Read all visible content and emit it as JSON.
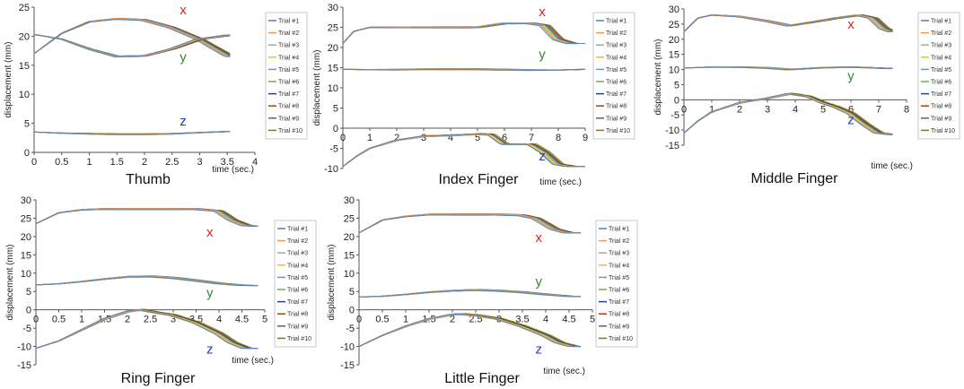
{
  "colors": {
    "trial_palette": [
      "#4f81bd",
      "#f79646",
      "#a5a5a5",
      "#ffc000",
      "#5b9bd5",
      "#70ad47",
      "#264478",
      "#9e480e",
      "#636363",
      "#997300"
    ],
    "x_marker": "#e02020",
    "y_marker": "#2e8b2e",
    "z_marker": "#2040c0",
    "axis": "#555555",
    "grid": "#e6e6e6"
  },
  "legend_entries": [
    "Trial #1",
    "Trial #2",
    "Trial #3",
    "Trial #4",
    "Trial #5",
    "Trial #6",
    "Trial #7",
    "Trial #8",
    "Trial #9",
    "Trial #10"
  ],
  "chart_data": [
    {
      "type": "line",
      "title": "Thumb",
      "xlabel": "time (sec.)",
      "ylabel": "displacement (mm)",
      "xlim": [
        0,
        4
      ],
      "ylim": [
        0,
        25
      ],
      "x_ticks": [
        0,
        0.5,
        1,
        1.5,
        2,
        2.5,
        3,
        3.5,
        4
      ],
      "y_ticks": [
        0,
        5,
        10,
        15,
        20,
        25
      ],
      "x_end": 3.55,
      "grid": false,
      "legend": "right",
      "axis_markers": [
        {
          "text": "x",
          "color": "#e02020",
          "at": [
            2.7,
            23.8
          ]
        },
        {
          "text": "y",
          "color": "#2e8b2e",
          "at": [
            2.7,
            15.7
          ]
        },
        {
          "text": "z",
          "color": "#2040c0",
          "at": [
            2.7,
            4.6
          ]
        }
      ],
      "components": [
        {
          "axis": "x",
          "x": [
            0,
            0.5,
            1,
            1.5,
            2,
            2.5,
            3,
            3.55
          ],
          "y": [
            17,
            20.5,
            22.5,
            23,
            22.8,
            21.5,
            19.5,
            16.5
          ]
        },
        {
          "axis": "y",
          "x": [
            0,
            0.5,
            1,
            1.5,
            2,
            2.5,
            3,
            3.55
          ],
          "y": [
            20.3,
            19.5,
            17.8,
            16.5,
            16.6,
            17.8,
            19.5,
            20.2
          ]
        },
        {
          "axis": "z",
          "x": [
            0,
            0.5,
            1,
            1.5,
            2,
            2.5,
            3,
            3.55
          ],
          "y": [
            3.5,
            3.3,
            3.2,
            3.1,
            3.1,
            3.2,
            3.4,
            3.6
          ]
        }
      ]
    },
    {
      "type": "line",
      "title": "Index Finger",
      "xlabel": "time (sec.)",
      "ylabel": "displacement (mm)",
      "xlim": [
        0,
        9
      ],
      "ylim": [
        -10,
        30
      ],
      "x_ticks": [
        0,
        1,
        2,
        3,
        4,
        5,
        6,
        7,
        8,
        9
      ],
      "y_ticks": [
        -10,
        -5,
        0,
        5,
        10,
        15,
        20,
        25,
        30
      ],
      "x_end": 9,
      "grid": false,
      "legend": "right",
      "axis_markers": [
        {
          "text": "x",
          "color": "#e02020",
          "at": [
            7.4,
            27.8
          ]
        },
        {
          "text": "y",
          "color": "#2e8b2e",
          "at": [
            7.4,
            17.2
          ]
        },
        {
          "text": "z",
          "color": "#2040c0",
          "at": [
            7.4,
            -8
          ]
        }
      ],
      "components": [
        {
          "axis": "x",
          "x": [
            0,
            0.4,
            1,
            2,
            3,
            4,
            5,
            6,
            7,
            7.5,
            8,
            8.5,
            9
          ],
          "y": [
            21,
            24,
            25,
            25,
            25,
            25,
            25,
            26,
            26,
            25.5,
            22,
            21,
            21
          ]
        },
        {
          "axis": "y",
          "x": [
            0,
            1,
            2,
            3,
            4,
            5,
            6,
            7,
            8,
            9
          ],
          "y": [
            14.6,
            14.5,
            14.5,
            14.6,
            14.6,
            14.6,
            14.5,
            14.4,
            14.4,
            14.6
          ]
        },
        {
          "axis": "z",
          "x": [
            0,
            0.5,
            1,
            2,
            3,
            4,
            5,
            5.5,
            6,
            7,
            7.5,
            8,
            8.5,
            9
          ],
          "y": [
            -9.5,
            -7,
            -5,
            -3,
            -2,
            -1.8,
            -1.5,
            -1.6,
            -4,
            -4,
            -6,
            -9,
            -9.5,
            -9.5
          ]
        }
      ]
    },
    {
      "type": "line",
      "title": "Middle Finger",
      "xlabel": "time (sec.)",
      "ylabel": "displacement (mm)",
      "xlim": [
        0,
        8
      ],
      "ylim": [
        -15,
        30
      ],
      "x_ticks": [
        0,
        1,
        2,
        3,
        4,
        5,
        6,
        7,
        8
      ],
      "y_ticks": [
        -15,
        -10,
        -5,
        0,
        5,
        10,
        15,
        20,
        25,
        30
      ],
      "x_end": 7.5,
      "grid": false,
      "legend": "right",
      "axis_markers": [
        {
          "text": "x",
          "color": "#e02020",
          "at": [
            6.0,
            23.5
          ]
        },
        {
          "text": "y",
          "color": "#2e8b2e",
          "at": [
            6.0,
            6.5
          ]
        },
        {
          "text": "z",
          "color": "#2040c0",
          "at": [
            6.0,
            -8
          ]
        }
      ],
      "components": [
        {
          "axis": "x",
          "x": [
            0,
            0.5,
            1,
            2,
            3,
            3.8,
            4.5,
            5.5,
            6.3,
            6.8,
            7.2,
            7.5
          ],
          "y": [
            22.5,
            27,
            28,
            27.5,
            26,
            24.5,
            25.5,
            27,
            28,
            27,
            23.5,
            22.5
          ]
        },
        {
          "axis": "y",
          "x": [
            0,
            1,
            2,
            3,
            3.8,
            5,
            6,
            7,
            7.5
          ],
          "y": [
            10.5,
            10.8,
            10.8,
            10.5,
            10,
            10.6,
            10.8,
            10.5,
            10.3
          ]
        },
        {
          "axis": "z",
          "x": [
            0,
            0.5,
            1,
            2,
            3,
            3.8,
            4.5,
            5,
            5.5,
            6,
            6.5,
            7,
            7.5
          ],
          "y": [
            -11,
            -7,
            -4,
            -1,
            0.5,
            2,
            1,
            -1,
            -2.5,
            -4.5,
            -8,
            -11,
            -11.5
          ]
        }
      ]
    },
    {
      "type": "line",
      "title": "Ring Finger",
      "xlabel": "time (sec.)",
      "ylabel": "displacement (mm)",
      "xlim": [
        0,
        5
      ],
      "ylim": [
        -15,
        30
      ],
      "x_ticks": [
        0,
        0.5,
        1,
        1.5,
        2,
        2.5,
        3,
        3.5,
        4,
        4.5,
        5
      ],
      "y_ticks": [
        -15,
        -10,
        -5,
        0,
        5,
        10,
        15,
        20,
        25,
        30
      ],
      "x_end": 4.85,
      "grid": false,
      "legend": "right",
      "axis_markers": [
        {
          "text": "x",
          "color": "#e02020",
          "at": [
            3.8,
            20
          ]
        },
        {
          "text": "y",
          "color": "#2e8b2e",
          "at": [
            3.8,
            3.5
          ]
        },
        {
          "text": "z",
          "color": "#2040c0",
          "at": [
            3.8,
            -12
          ]
        }
      ],
      "components": [
        {
          "axis": "x",
          "x": [
            0,
            0.5,
            1,
            1.5,
            2,
            2.5,
            3,
            3.5,
            4,
            4.3,
            4.6,
            4.85
          ],
          "y": [
            23.5,
            26.5,
            27.3,
            27.5,
            27.5,
            27.5,
            27.5,
            27.5,
            27,
            24.5,
            23,
            22.8
          ]
        },
        {
          "axis": "y",
          "x": [
            0,
            0.5,
            1,
            1.5,
            2,
            2.5,
            3,
            3.5,
            4,
            4.5,
            4.85
          ],
          "y": [
            6.8,
            7.1,
            7.7,
            8.4,
            9,
            9.1,
            8.7,
            8,
            7.2,
            6.7,
            6.6
          ]
        },
        {
          "axis": "z",
          "x": [
            0,
            0.5,
            1,
            1.5,
            2,
            2.3,
            2.5,
            3,
            3.5,
            4,
            4.3,
            4.6,
            4.85
          ],
          "y": [
            -10.5,
            -8.5,
            -5.5,
            -2.5,
            -0.5,
            0,
            -0.5,
            -1.5,
            -3.5,
            -6.5,
            -9,
            -10.5,
            -10.5
          ]
        }
      ]
    },
    {
      "type": "line",
      "title": "Little Finger",
      "xlabel": "time (sec.)",
      "ylabel": "displacement (mm)",
      "xlim": [
        0,
        5
      ],
      "ylim": [
        -15,
        30
      ],
      "x_ticks": [
        0,
        0.5,
        1,
        1.5,
        2,
        2.5,
        3,
        3.5,
        4,
        4.5,
        5
      ],
      "y_ticks": [
        -15,
        -10,
        -5,
        0,
        5,
        10,
        15,
        20,
        25,
        30
      ],
      "x_end": 4.75,
      "grid": false,
      "legend": "right",
      "axis_markers": [
        {
          "text": "x",
          "color": "#e02020",
          "at": [
            3.85,
            18.5
          ]
        },
        {
          "text": "y",
          "color": "#2e8b2e",
          "at": [
            3.85,
            6.5
          ]
        },
        {
          "text": "z",
          "color": "#2040c0",
          "at": [
            3.85,
            -12
          ]
        }
      ],
      "components": [
        {
          "axis": "x",
          "x": [
            0,
            0.5,
            1,
            1.5,
            2,
            2.5,
            3,
            3.5,
            3.8,
            4.2,
            4.5,
            4.75
          ],
          "y": [
            21,
            24.5,
            25.5,
            26,
            26,
            26,
            26,
            25.8,
            25,
            22,
            21,
            21
          ]
        },
        {
          "axis": "y",
          "x": [
            0,
            0.5,
            1,
            1.5,
            2,
            2.5,
            3,
            3.5,
            4,
            4.5,
            4.75
          ],
          "y": [
            3.5,
            3.7,
            4.2,
            4.8,
            5.2,
            5.4,
            5.2,
            4.8,
            4.2,
            3.7,
            3.6
          ]
        },
        {
          "axis": "z",
          "x": [
            0,
            0.5,
            1,
            1.5,
            2,
            2.2,
            2.5,
            3,
            3.5,
            4,
            4.3,
            4.6,
            4.75
          ],
          "y": [
            -10,
            -7,
            -4.5,
            -2.5,
            -1.3,
            -1.2,
            -1.5,
            -2.5,
            -4.5,
            -7,
            -9,
            -10,
            -10
          ]
        }
      ]
    }
  ]
}
